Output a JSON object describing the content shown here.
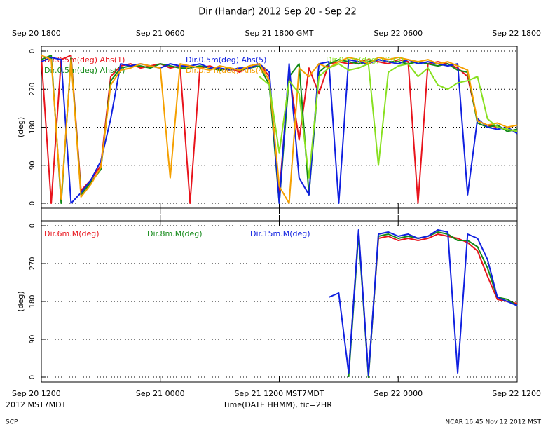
{
  "footer": {
    "left": "SCP",
    "right": "NCAR 16:45 Nov 12 2012 MST"
  },
  "chart_data": [
    {
      "type": "line",
      "title": "Dir (Handar) 2012 Sep 20 - Sep 22",
      "y_label": "(deg)",
      "x": [
        0,
        1,
        2,
        3,
        4,
        5,
        6,
        7,
        8,
        9,
        10,
        11,
        12,
        13,
        14,
        15,
        16,
        17,
        18,
        19,
        20,
        21,
        22,
        23,
        24,
        25,
        26,
        27,
        28,
        29,
        30,
        31,
        32,
        33,
        34,
        35,
        36,
        37,
        38,
        39,
        40,
        41,
        42,
        43,
        44,
        45,
        46,
        47,
        48
      ],
      "xlim": [
        0,
        48
      ],
      "x2ticks": [
        {
          "value": 0,
          "label": "Sep 20 1800"
        },
        {
          "value": 12,
          "label": "Sep 21 0600"
        },
        {
          "value": 24,
          "label": "Sep 21 1800 GMT"
        },
        {
          "value": 36,
          "label": "Sep 22 0600"
        },
        {
          "value": 48,
          "label": "Sep 22 1800"
        }
      ],
      "ylim": [
        0,
        360
      ],
      "yticks": [
        {
          "value": 360,
          "label": "0"
        },
        270,
        180,
        90,
        0
      ],
      "grid": true,
      "series": [
        {
          "name": "Dir.0.5m(deg) Ahs(1)",
          "color": "#e8141c",
          "values": [
            345,
            0,
            340,
            350,
            30,
            55,
            90,
            300,
            325,
            330,
            320,
            325,
            330,
            320,
            325,
            0,
            320,
            325,
            315,
            320,
            310,
            325,
            330,
            300,
            20,
            310,
            150,
            320,
            260,
            330,
            335,
            330,
            335,
            340,
            335,
            330,
            340,
            335,
            0,
            330,
            335,
            330,
            320,
            300,
            195,
            185,
            180,
            175,
            170
          ]
        },
        {
          "name": "Dir.0.5m(deg) Ahs(2)",
          "color": "#138a18",
          "values": [
            340,
            350,
            0,
            345,
            20,
            50,
            80,
            290,
            320,
            325,
            325,
            320,
            330,
            325,
            320,
            320,
            325,
            320,
            315,
            320,
            315,
            320,
            325,
            280,
            0,
            300,
            330,
            20,
            310,
            330,
            340,
            335,
            330,
            335,
            340,
            335,
            335,
            330,
            335,
            330,
            325,
            330,
            315,
            310,
            190,
            180,
            185,
            170,
            175
          ]
        },
        {
          "name": "Dir.0.5m(deg) Ahs(5)",
          "color": "#1020e0",
          "values": [
            335,
            345,
            340,
            0,
            25,
            55,
            100,
            200,
            330,
            325,
            330,
            325,
            320,
            330,
            325,
            325,
            330,
            320,
            320,
            315,
            320,
            320,
            330,
            310,
            0,
            330,
            60,
            20,
            330,
            335,
            0,
            340,
            335,
            330,
            340,
            335,
            330,
            340,
            330,
            335,
            330,
            325,
            330,
            20,
            200,
            180,
            175,
            180,
            165
          ]
        },
        {
          "name": "Dir.0.5m(deg) Ahs(4)",
          "color": "#f5a000",
          "values": [
            350,
            340,
            10,
            340,
            15,
            45,
            85,
            280,
            315,
            320,
            330,
            325,
            320,
            60,
            330,
            325,
            320,
            315,
            325,
            320,
            315,
            325,
            330,
            290,
            40,
            0,
            320,
            300,
            330,
            320,
            335,
            345,
            340,
            330,
            345,
            340,
            345,
            340,
            335,
            340,
            330,
            335,
            325,
            315,
            195,
            185,
            190,
            180,
            185
          ]
        },
        {
          "name": "Dir.0.5m(deg) CG(3)",
          "color": "#88e020",
          "values": [
            null,
            null,
            null,
            null,
            null,
            null,
            null,
            null,
            null,
            null,
            null,
            null,
            null,
            null,
            null,
            null,
            null,
            null,
            null,
            null,
            null,
            null,
            300,
            280,
            120,
            290,
            260,
            60,
            300,
            320,
            330,
            315,
            320,
            330,
            90,
            310,
            325,
            330,
            300,
            320,
            280,
            270,
            285,
            290,
            300,
            200,
            180,
            175,
            170
          ]
        }
      ]
    },
    {
      "type": "line",
      "y_label": "(deg)",
      "x_label": "Time(DATE HHMM), tic=2HR",
      "timezone": "2012 MST7MDT",
      "x": [
        29,
        30,
        31,
        32,
        33,
        34,
        35,
        36,
        37,
        38,
        39,
        40,
        41,
        42,
        43,
        44,
        45,
        46,
        47,
        48
      ],
      "xlim": [
        0,
        48
      ],
      "xticks": [
        {
          "value": 0,
          "label": "Sep 20 1200"
        },
        {
          "value": 12,
          "label": "Sep 21 0000"
        },
        {
          "value": 24,
          "label": "Sep 21 1200 MST7MDT"
        },
        {
          "value": 36,
          "label": "Sep 22 0000"
        },
        {
          "value": 48,
          "label": "Sep 22 1200"
        }
      ],
      "ylim": [
        0,
        360
      ],
      "yticks": [
        {
          "value": 360,
          "label": "0"
        },
        270,
        180,
        90,
        0
      ],
      "grid": true,
      "series": [
        {
          "name": "Dir.6m.M(deg)",
          "color": "#e8141c",
          "values": [
            null,
            null,
            10,
            345,
            5,
            330,
            335,
            325,
            330,
            325,
            330,
            340,
            335,
            330,
            320,
            300,
            240,
            185,
            180,
            175
          ]
        },
        {
          "name": "Dir.8m.M(deg)",
          "color": "#138a18",
          "values": [
            null,
            null,
            0,
            340,
            0,
            335,
            340,
            330,
            335,
            330,
            335,
            345,
            340,
            325,
            325,
            310,
            260,
            190,
            185,
            170
          ]
        },
        {
          "name": "Dir.15m.M(deg)",
          "color": "#1020e0",
          "values": [
            190,
            200,
            10,
            350,
            5,
            340,
            345,
            335,
            340,
            330,
            335,
            350,
            345,
            10,
            340,
            330,
            280,
            190,
            180,
            170
          ]
        }
      ]
    }
  ]
}
